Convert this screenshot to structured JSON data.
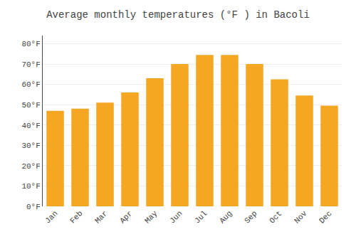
{
  "chart_data": {
    "type": "bar",
    "title": "Average monthly temperatures (°F ) in Bacoli",
    "categories": [
      "Jan",
      "Feb",
      "Mar",
      "Apr",
      "May",
      "Jun",
      "Jul",
      "Aug",
      "Sep",
      "Oct",
      "Nov",
      "Dec"
    ],
    "values": [
      47,
      48,
      51,
      56,
      63,
      70,
      74.5,
      74.5,
      70,
      62.5,
      54.5,
      49.5
    ],
    "color": "#F5A623",
    "ylim": [
      0,
      84
    ],
    "yticks": [
      {
        "value": 0,
        "label": "0°F"
      },
      {
        "value": 10,
        "label": "10°F"
      },
      {
        "value": 20,
        "label": "20°F"
      },
      {
        "value": 30,
        "label": "30°F"
      },
      {
        "value": 40,
        "label": "40°F"
      },
      {
        "value": 50,
        "label": "50°F"
      },
      {
        "value": 60,
        "label": "60°F"
      },
      {
        "value": 70,
        "label": "70°F"
      },
      {
        "value": 80,
        "label": "80°F"
      }
    ],
    "grid": true
  }
}
